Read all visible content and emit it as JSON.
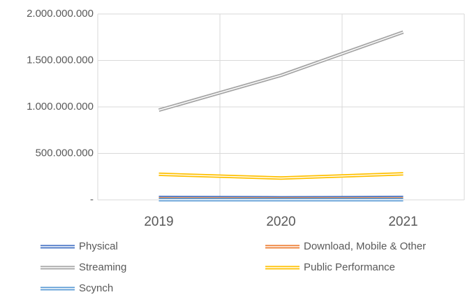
{
  "chart_data": {
    "type": "line",
    "categories": [
      "2019",
      "2020",
      "2021"
    ],
    "series": [
      {
        "name": "Physical",
        "color": "#4472c4",
        "values": [
          25000000,
          22000000,
          25000000
        ]
      },
      {
        "name": "Download, Mobile & Other",
        "color": "#ed7d31",
        "values": [
          10000000,
          9000000,
          9000000
        ]
      },
      {
        "name": "Streaming",
        "color": "#a5a5a5",
        "values": [
          965000000,
          1340000000,
          1805000000
        ]
      },
      {
        "name": "Public Performance",
        "color": "#ffc000",
        "values": [
          275000000,
          235000000,
          280000000
        ]
      },
      {
        "name": "Scynch",
        "color": "#5b9bd5",
        "values": [
          2000000,
          2000000,
          2000000
        ]
      }
    ],
    "ylim": [
      0,
      2000000000
    ],
    "yticks": [
      {
        "value": 0,
        "label": "-"
      },
      {
        "value": 500000000,
        "label": "500.000.000"
      },
      {
        "value": 1000000000,
        "label": "1.000.000.000"
      },
      {
        "value": 1500000000,
        "label": "1.500.000.000"
      },
      {
        "value": 2000000000,
        "label": "2.000.000.000"
      }
    ],
    "grid": true,
    "legend": "bottom"
  }
}
